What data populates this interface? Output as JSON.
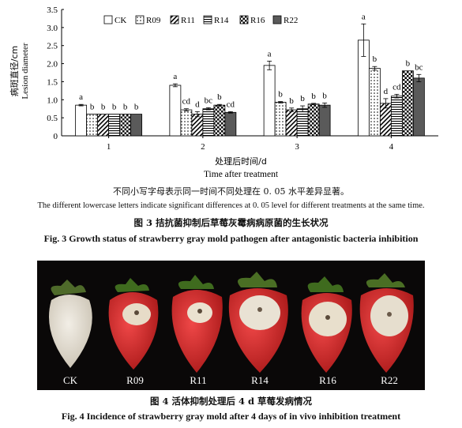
{
  "chart_data": {
    "type": "bar",
    "categories": [
      "1",
      "2",
      "3",
      "4"
    ],
    "ylim": [
      0,
      3.5
    ],
    "yticks": [
      "0",
      "0.5",
      "1.0",
      "1.5",
      "2.0",
      "2.5",
      "3.0",
      "3.5"
    ],
    "ylabel_cn": "病斑直径/cm",
    "ylabel_en": "Lesion diameter",
    "xlabel_cn": "处理后时间/d",
    "xlabel_en": "Time after treatment",
    "series": [
      {
        "name": "CK",
        "pattern": "white",
        "values": [
          0.85,
          1.4,
          1.95,
          2.65
        ],
        "errors": [
          0.02,
          0.04,
          0.12,
          0.45
        ],
        "labels": [
          "a",
          "a",
          "a",
          "a"
        ]
      },
      {
        "name": "R09",
        "pattern": "dots",
        "values": [
          0.6,
          0.72,
          0.93,
          1.87
        ],
        "errors": [
          0.0,
          0.03,
          0.02,
          0.05
        ],
        "labels": [
          "b",
          "cd",
          "b",
          "b"
        ]
      },
      {
        "name": "R11",
        "pattern": "diag",
        "values": [
          0.6,
          0.6,
          0.72,
          0.9
        ],
        "errors": [
          0.0,
          0.07,
          0.05,
          0.13
        ],
        "labels": [
          "b",
          "d",
          "b",
          "d"
        ]
      },
      {
        "name": "R14",
        "pattern": "hstripe",
        "values": [
          0.6,
          0.75,
          0.75,
          1.1
        ],
        "errors": [
          0.0,
          0.03,
          0.08,
          0.05
        ],
        "labels": [
          "b",
          "bc",
          "b",
          "cd"
        ]
      },
      {
        "name": "R16",
        "pattern": "checker",
        "values": [
          0.6,
          0.85,
          0.88,
          1.8
        ],
        "errors": [
          0.0,
          0.02,
          0.02,
          0.0
        ],
        "labels": [
          "b",
          "b",
          "b",
          "b"
        ]
      },
      {
        "name": "R22",
        "pattern": "gray",
        "values": [
          0.6,
          0.65,
          0.85,
          1.6
        ],
        "errors": [
          0.0,
          0.02,
          0.06,
          0.1
        ],
        "labels": [
          "b",
          "cd",
          "b",
          "bc"
        ]
      }
    ],
    "legend_placement": "top-left"
  },
  "notes": {
    "cn": "不同小写字母表示同一时间不同处理在 0. 05 水平差异显著。",
    "en": "The different lowercase letters  indicate significant differences at 0. 05 level for different treatments at the same time."
  },
  "figure3": {
    "caption_cn": "图 3   拮抗菌抑制后草莓灰霉病病原菌的生长状况",
    "caption_en": "Fig. 3    Growth status of strawberry gray mold pathogen after antagonistic bacteria inhibition"
  },
  "figure4": {
    "labels": [
      "CK",
      "R09",
      "R11",
      "R14",
      "R16",
      "R22"
    ],
    "caption_cn": "图 4   活体抑制处理后 4 d 草莓发病情况",
    "caption_en": "Fig. 4    Incidence of strawberry gray mold after 4 days of in vivo inhibition treatment"
  }
}
